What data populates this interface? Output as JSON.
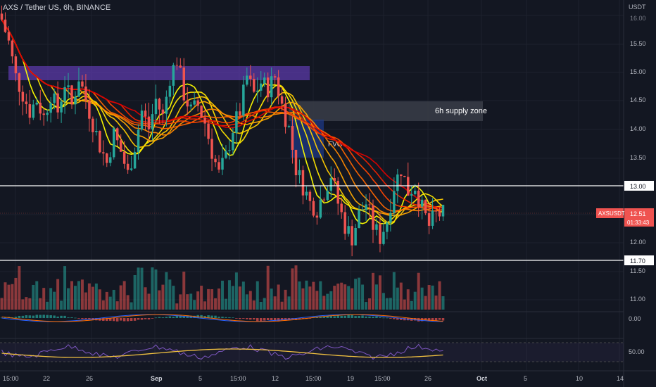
{
  "header": {
    "title": "AXS / Tether US, 6h, BINANCE"
  },
  "price_scale": {
    "currency": "USDT",
    "ticks": [
      "16.00",
      "15.50",
      "15.00",
      "14.50",
      "14.00",
      "13.50",
      "13.00",
      "12.00",
      "11.70",
      "11.50",
      "11.00"
    ],
    "level_13_label": "13.00",
    "level_1170_label": "11.70",
    "last_price_symbol": "AXSUSDT",
    "last_price": "12.51",
    "countdown": "01:33:43"
  },
  "annotations": {
    "supply_zone_label": "6h supply zone",
    "fvg_label": "FVG"
  },
  "panes": {
    "macd_zero_label": "0.00",
    "rsi_label": "50.00"
  },
  "time_axis": {
    "labels": [
      "15:00",
      "22",
      "26",
      "Sep",
      "5",
      "15:00",
      "12",
      "15:00",
      "19",
      "15:00",
      "26",
      "Oct",
      "5",
      "10",
      "14"
    ]
  },
  "colors": {
    "background": "#131722",
    "up": "#26a69a",
    "down": "#ef5350",
    "supply_zone": "#3a3d48",
    "purple_zone": "#5b3aa8",
    "fvg_zone": "#1e3a8a",
    "rsi_line": "#7e57c2",
    "rsi_ma": "#f0c040"
  },
  "chart_data": {
    "type": "candlestick",
    "symbol": "AXSUSDT",
    "interval": "6h",
    "exchange": "BINANCE",
    "x_tick_labels": [
      "15:00",
      "22",
      "26",
      "Sep",
      "5",
      "15:00",
      "12",
      "15:00",
      "19",
      "15:00",
      "26",
      "Oct",
      "5",
      "10",
      "14"
    ],
    "y_range": [
      10.8,
      16.3
    ],
    "close_path": [
      [
        0,
        15.9
      ],
      [
        2,
        15.5
      ],
      [
        4,
        14.9
      ],
      [
        6,
        14.6
      ],
      [
        8,
        14.3
      ],
      [
        10,
        14.5
      ],
      [
        12,
        14.2
      ],
      [
        14,
        14.6
      ],
      [
        16,
        14.3
      ],
      [
        18,
        14.8
      ],
      [
        20,
        14.4
      ],
      [
        22,
        14.9
      ],
      [
        24,
        14.5
      ],
      [
        26,
        14.1
      ],
      [
        28,
        13.7
      ],
      [
        30,
        13.4
      ],
      [
        32,
        13.9
      ],
      [
        34,
        13.6
      ],
      [
        36,
        13.2
      ],
      [
        38,
        13.7
      ],
      [
        40,
        14.3
      ],
      [
        42,
        14.0
      ],
      [
        44,
        14.5
      ],
      [
        46,
        14.2
      ],
      [
        48,
        14.9
      ],
      [
        50,
        15.2
      ],
      [
        52,
        14.6
      ],
      [
        54,
        14.3
      ],
      [
        56,
        14.4
      ],
      [
        58,
        14.1
      ],
      [
        60,
        13.6
      ],
      [
        62,
        13.2
      ],
      [
        64,
        13.5
      ],
      [
        66,
        14.0
      ],
      [
        68,
        14.3
      ],
      [
        70,
        14.9
      ],
      [
        72,
        14.6
      ],
      [
        74,
        14.8
      ],
      [
        76,
        14.7
      ],
      [
        78,
        14.9
      ],
      [
        80,
        14.4
      ],
      [
        82,
        14.0
      ],
      [
        84,
        13.3
      ],
      [
        86,
        13.0
      ],
      [
        88,
        12.7
      ],
      [
        90,
        12.6
      ],
      [
        92,
        12.9
      ],
      [
        94,
        13.2
      ],
      [
        96,
        12.7
      ],
      [
        98,
        12.3
      ],
      [
        100,
        12.1
      ],
      [
        102,
        12.5
      ],
      [
        104,
        12.7
      ],
      [
        106,
        12.3
      ],
      [
        108,
        12.1
      ],
      [
        110,
        12.4
      ],
      [
        112,
        13.0
      ],
      [
        114,
        13.3
      ],
      [
        116,
        12.9
      ],
      [
        118,
        13.0
      ],
      [
        120,
        12.6
      ],
      [
        122,
        12.3
      ],
      [
        124,
        12.5
      ],
      [
        126,
        12.51
      ]
    ],
    "horizontal_levels": [
      13.0,
      11.7
    ],
    "last_price": 12.51,
    "zones": {
      "purple": [
        14.9,
        15.1
      ],
      "supply_6h": [
        14.2,
        14.45
      ],
      "fvg": [
        13.5,
        14.05
      ]
    },
    "indicators": [
      "MA ribbon",
      "Volume",
      "MACD",
      "RSI"
    ]
  }
}
